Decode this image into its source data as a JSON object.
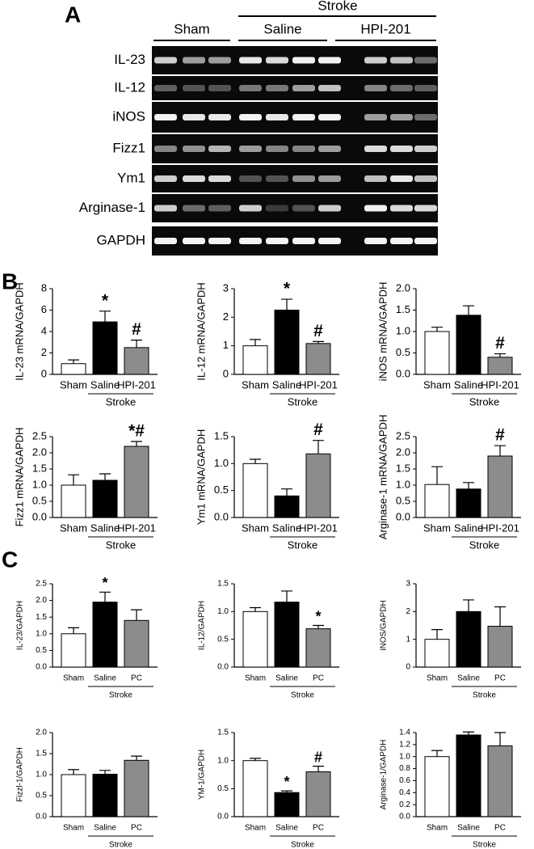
{
  "panel_labels": [
    "A",
    "B",
    "C"
  ],
  "gel": {
    "title": "Stroke",
    "groups": [
      "Sham",
      "Saline",
      "HPI-201"
    ],
    "rows": [
      "IL-23",
      "IL-12",
      "iNOS",
      "Fizz1",
      "Ym1",
      "Arginase-1",
      "GAPDH"
    ]
  },
  "chart_data": [
    {
      "type": "bar",
      "y_label": "IL-23 mRNA/GAPDH",
      "categories": [
        "Sham",
        "Saline",
        "HPI-201"
      ],
      "group_label": "Stroke",
      "values": [
        1,
        4.9,
        2.5
      ],
      "errors": [
        0.35,
        1.0,
        0.7
      ],
      "colors": [
        "#ffffff",
        "#000000",
        "#8c8c8c"
      ],
      "ylim": [
        0,
        8
      ],
      "yticks": [
        0,
        2,
        4,
        6,
        8
      ],
      "annotations": [
        {
          "index": 1,
          "text": "*"
        },
        {
          "index": 2,
          "text": "#"
        }
      ]
    },
    {
      "type": "bar",
      "y_label": "IL-12 mRNA/GAPDH",
      "categories": [
        "Sham",
        "Saline",
        "HPI-201"
      ],
      "group_label": "Stroke",
      "values": [
        1,
        2.25,
        1.08
      ],
      "errors": [
        0.22,
        0.38,
        0.07
      ],
      "colors": [
        "#ffffff",
        "#000000",
        "#8c8c8c"
      ],
      "ylim": [
        0,
        3
      ],
      "yticks": [
        0,
        1,
        2,
        3
      ],
      "annotations": [
        {
          "index": 1,
          "text": "*"
        },
        {
          "index": 2,
          "text": "#"
        }
      ]
    },
    {
      "type": "bar",
      "y_label": "iNOS mRNA/GAPDH",
      "categories": [
        "Sham",
        "Saline",
        "HPI-201"
      ],
      "group_label": "Stroke",
      "values": [
        1,
        1.38,
        0.4
      ],
      "errors": [
        0.1,
        0.22,
        0.08
      ],
      "colors": [
        "#ffffff",
        "#000000",
        "#8c8c8c"
      ],
      "ylim": [
        0,
        2
      ],
      "yticks": [
        {
          "value": 0,
          "label": "0.0"
        },
        0.5,
        {
          "value": 1,
          "label": "1.0"
        },
        1.5,
        {
          "value": 2,
          "label": "2.0"
        }
      ],
      "annotations": [
        {
          "index": 2,
          "text": "#"
        }
      ]
    },
    {
      "type": "bar",
      "y_label": "Fizz1 mRNA/GAPDH",
      "categories": [
        "Sham",
        "Saline",
        "HPI-201"
      ],
      "group_label": "Stroke",
      "values": [
        1,
        1.15,
        2.2
      ],
      "errors": [
        0.32,
        0.2,
        0.15
      ],
      "colors": [
        "#ffffff",
        "#000000",
        "#8c8c8c"
      ],
      "ylim": [
        0,
        2.5
      ],
      "yticks": [
        {
          "value": 0,
          "label": "0.0"
        },
        0.5,
        {
          "value": 1,
          "label": "1.0"
        },
        1.5,
        {
          "value": 2,
          "label": "2.0"
        },
        2.5
      ],
      "annotations": [
        {
          "index": 2,
          "text": "*#"
        }
      ]
    },
    {
      "type": "bar",
      "y_label": "Ym1 mRNA/GAPDH",
      "categories": [
        "Sham",
        "Saline",
        "HPI-201"
      ],
      "group_label": "Stroke",
      "values": [
        1,
        0.4,
        1.18
      ],
      "errors": [
        0.08,
        0.13,
        0.25
      ],
      "colors": [
        "#ffffff",
        "#000000",
        "#8c8c8c"
      ],
      "ylim": [
        0,
        1.5
      ],
      "yticks": [
        {
          "value": 0,
          "label": "0.0"
        },
        0.5,
        {
          "value": 1,
          "label": "1.0"
        },
        1.5
      ],
      "annotations": [
        {
          "index": 2,
          "text": "#"
        }
      ]
    },
    {
      "type": "bar",
      "y_label": "Arginase-1 mRNA/GAPDH",
      "categories": [
        "Sham",
        "Saline",
        "HPI-201"
      ],
      "group_label": "Stroke",
      "values": [
        1.02,
        0.88,
        1.9
      ],
      "errors": [
        0.55,
        0.2,
        0.32
      ],
      "colors": [
        "#ffffff",
        "#000000",
        "#8c8c8c"
      ],
      "ylim": [
        0,
        2.5
      ],
      "yticks": [
        {
          "value": 0,
          "label": "0.0"
        },
        0.5,
        {
          "value": 1,
          "label": "1.0"
        },
        1.5,
        {
          "value": 2,
          "label": "2.0"
        },
        2.5
      ],
      "annotations": [
        {
          "index": 2,
          "text": "#"
        }
      ]
    },
    {
      "type": "bar",
      "y_label": "IL-23/GAPDH",
      "categories": [
        "Sham",
        "Saline",
        "PC"
      ],
      "group_label": "Stroke",
      "values": [
        1,
        1.95,
        1.4
      ],
      "errors": [
        0.18,
        0.3,
        0.32
      ],
      "colors": [
        "#ffffff",
        "#000000",
        "#8c8c8c"
      ],
      "ylim": [
        0,
        2.5
      ],
      "yticks": [
        {
          "value": 0,
          "label": "0.0"
        },
        0.5,
        {
          "value": 1,
          "label": "1.0"
        },
        1.5,
        {
          "value": 2,
          "label": "2.0"
        },
        2.5
      ],
      "annotations": [
        {
          "index": 1,
          "text": "*"
        }
      ]
    },
    {
      "type": "bar",
      "y_label": "IL-12/GAPDH",
      "categories": [
        "Sham",
        "Saline",
        "PC"
      ],
      "group_label": "Stroke",
      "values": [
        1,
        1.17,
        0.69
      ],
      "errors": [
        0.07,
        0.2,
        0.06
      ],
      "colors": [
        "#ffffff",
        "#000000",
        "#8c8c8c"
      ],
      "ylim": [
        0,
        1.5
      ],
      "yticks": [
        {
          "value": 0,
          "label": "0.0"
        },
        0.5,
        {
          "value": 1,
          "label": "1.0"
        },
        1.5
      ],
      "annotations": [
        {
          "index": 2,
          "text": "*"
        }
      ]
    },
    {
      "type": "bar",
      "y_label": "iNOS/GAPDH",
      "categories": [
        "Sham",
        "Saline",
        "PC"
      ],
      "group_label": "Stroke",
      "values": [
        1,
        2,
        1.47
      ],
      "errors": [
        0.35,
        0.42,
        0.7
      ],
      "colors": [
        "#ffffff",
        "#000000",
        "#8c8c8c"
      ],
      "ylim": [
        0,
        3
      ],
      "yticks": [
        0,
        1,
        2,
        3
      ]
    },
    {
      "type": "bar",
      "y_label": "Fizzl-1/GAPDH",
      "categories": [
        "Sham",
        "Saline",
        "PC"
      ],
      "group_label": "Stroke",
      "values": [
        1,
        1.01,
        1.34
      ],
      "errors": [
        0.12,
        0.09,
        0.1
      ],
      "colors": [
        "#ffffff",
        "#000000",
        "#8c8c8c"
      ],
      "ylim": [
        0,
        2
      ],
      "yticks": [
        {
          "value": 0,
          "label": "0.0"
        },
        0.5,
        {
          "value": 1,
          "label": "1.0"
        },
        1.5,
        {
          "value": 2,
          "label": "2.0"
        }
      ]
    },
    {
      "type": "bar",
      "y_label": "YM-1/GAPDH",
      "categories": [
        "Sham",
        "Saline",
        "PC"
      ],
      "group_label": "Stroke",
      "values": [
        1,
        0.43,
        0.8
      ],
      "errors": [
        0.04,
        0.03,
        0.1
      ],
      "colors": [
        "#ffffff",
        "#000000",
        "#8c8c8c"
      ],
      "ylim": [
        0,
        1.5
      ],
      "yticks": [
        {
          "value": 0,
          "label": "0.0"
        },
        0.5,
        {
          "value": 1,
          "label": "1.0"
        },
        1.5
      ],
      "annotations": [
        {
          "index": 1,
          "text": "*"
        },
        {
          "index": 2,
          "text": "#"
        }
      ]
    },
    {
      "type": "bar",
      "y_label": "Arginase-1/GAPDH",
      "categories": [
        "Sham",
        "Saline",
        "PC"
      ],
      "group_label": "Stroke",
      "values": [
        1,
        1.36,
        1.18
      ],
      "errors": [
        0.1,
        0.05,
        0.22
      ],
      "colors": [
        "#ffffff",
        "#000000",
        "#8c8c8c"
      ],
      "ylim": [
        0,
        1.4
      ],
      "yticks": [
        {
          "value": 0,
          "label": "0.0"
        },
        0.2,
        0.4,
        0.6,
        0.8,
        {
          "value": 1,
          "label": "1.0"
        },
        1.2,
        1.4
      ]
    }
  ]
}
